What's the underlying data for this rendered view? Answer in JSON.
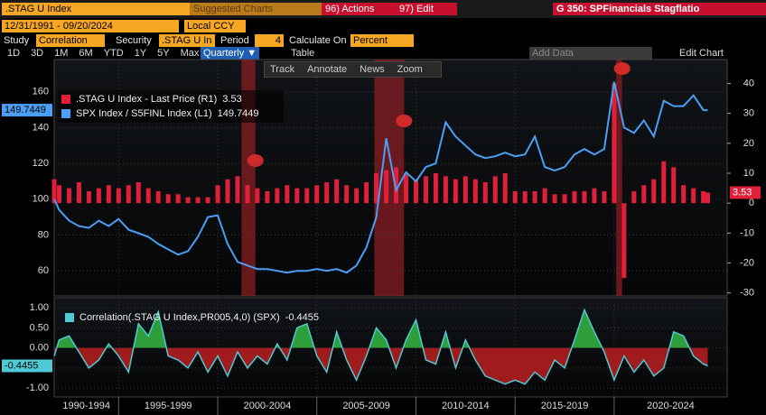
{
  "toolbar": {
    "ticker": ".STAG U Index",
    "suggested": "Suggested Charts",
    "actions": "96) Actions",
    "edit": "97) Edit",
    "chart_title": "G 350: SPFinancials Stagflatio",
    "date_range": "12/31/1991 - 09/20/2024",
    "currency": "Local CCY",
    "study_label": "Study",
    "study": "Correlation",
    "security_label": "Security",
    "security": ".STAG U In",
    "period_label": "Period",
    "period": "4",
    "calc_label": "Calculate On",
    "calc": "Percent",
    "ranges": [
      "1D",
      "3D",
      "1M",
      "6M",
      "YTD",
      "1Y",
      "5Y",
      "Max"
    ],
    "frequency": "Quarterly ▼",
    "table": "Table",
    "add_data": "Add Data",
    "edit_chart": "Edit Chart",
    "tools": [
      "Track",
      "Annotate",
      "News",
      "Zoom"
    ]
  },
  "chart_data": [
    {
      "type": "combo",
      "x": [
        1991.75,
        1992,
        1992.5,
        1993,
        1993.5,
        1994,
        1994.5,
        1995,
        1995.5,
        1996,
        1996.5,
        1997,
        1997.5,
        1998,
        1998.5,
        1999,
        1999.5,
        2000,
        2000.5,
        2001,
        2001.5,
        2002,
        2002.5,
        2003,
        2003.5,
        2004,
        2004.5,
        2005,
        2005.5,
        2006,
        2006.5,
        2007,
        2007.5,
        2008,
        2008.5,
        2009,
        2009.5,
        2010,
        2010.5,
        2011,
        2011.5,
        2012,
        2012.5,
        2013,
        2013.5,
        2014,
        2014.5,
        2015,
        2015.5,
        2016,
        2016.5,
        2017,
        2017.5,
        2018,
        2018.5,
        2019,
        2019.5,
        2020,
        2020.5,
        2021,
        2021.5,
        2022,
        2022.5,
        2023,
        2023.5,
        2024,
        2024.5,
        2024.72
      ],
      "series": [
        {
          "name": ".STAG U Index - Last Price (R1)",
          "color": "#e0203a",
          "axis": "y2",
          "values": [
            8,
            6,
            5,
            7,
            4,
            5,
            6,
            5,
            6,
            7,
            5,
            4,
            3,
            3,
            2,
            2,
            2,
            6,
            8,
            9,
            6,
            5,
            4,
            5,
            6,
            5,
            5,
            6,
            7,
            8,
            6,
            5,
            7,
            10,
            11,
            12,
            10,
            8,
            9,
            10,
            9,
            8,
            9,
            8,
            7,
            9,
            10,
            4,
            4,
            4,
            5,
            3,
            3,
            4,
            4,
            5,
            4,
            40,
            -25,
            4,
            6,
            8,
            14,
            12,
            6,
            5,
            4,
            3.53
          ]
        },
        {
          "name": "SPX Index / S5FINL Index (L1)",
          "color": "#4a9ff5",
          "values": [
            100,
            94,
            88,
            85,
            84,
            88,
            85,
            89,
            83,
            81,
            79,
            75,
            72,
            69,
            71,
            79,
            90,
            91,
            75,
            65,
            63,
            61,
            61,
            60,
            59,
            60,
            60,
            61,
            60,
            61,
            59,
            63,
            73,
            90,
            134,
            105,
            115,
            110,
            118,
            120,
            143,
            135,
            130,
            125,
            123,
            124,
            126,
            124,
            125,
            135,
            118,
            116,
            118,
            125,
            128,
            125,
            128,
            165.5,
            140,
            137,
            144,
            135,
            155,
            152,
            152,
            158,
            149.7449,
            149.7449
          ]
        }
      ],
      "ylim": [
        46,
        178
      ],
      "yticks": [
        60,
        80,
        100,
        120,
        140,
        160
      ],
      "y2lim": [
        -31,
        48
      ],
      "y2ticks": [
        -30,
        -20,
        -10,
        0,
        10,
        20,
        30,
        40
      ],
      "xlim": [
        1991.75,
        2025.7
      ],
      "xticks": [
        1995,
        2000,
        2005,
        2010,
        2015,
        2020
      ],
      "shaded_ranges": [
        [
          2001.2,
          2001.9
        ],
        [
          2007.9,
          2009.4
        ],
        [
          2020.1,
          2020.4
        ]
      ],
      "grid": true
    },
    {
      "type": "area",
      "legend": "Correlation(.STAG U Index,PR005,4,0) (SPX)",
      "x": [
        1991.75,
        1992,
        1992.5,
        1993,
        1993.5,
        1994,
        1994.5,
        1995,
        1995.5,
        1996,
        1996.5,
        1997,
        1997.5,
        1998,
        1998.5,
        1999,
        1999.5,
        2000,
        2000.5,
        2001,
        2001.5,
        2002,
        2002.5,
        2003,
        2003.5,
        2004,
        2004.5,
        2005,
        2005.5,
        2006,
        2006.5,
        2007,
        2007.5,
        2008,
        2008.5,
        2009,
        2009.5,
        2010,
        2010.5,
        2011,
        2011.5,
        2012,
        2012.5,
        2013,
        2013.5,
        2014,
        2014.5,
        2015,
        2015.5,
        2016,
        2016.5,
        2017,
        2017.5,
        2018,
        2018.5,
        2019,
        2019.5,
        2020,
        2020.5,
        2021,
        2021.5,
        2022,
        2022.5,
        2023,
        2023.5,
        2024,
        2024.5,
        2024.72
      ],
      "values": [
        -0.2,
        0.2,
        0.3,
        -0.1,
        -0.5,
        -0.3,
        0.1,
        -0.2,
        -0.6,
        0.6,
        0.3,
        0.9,
        -0.2,
        -0.3,
        -0.5,
        -0.1,
        -0.6,
        -0.2,
        -0.7,
        -0.1,
        -0.5,
        -0.2,
        -0.4,
        0.1,
        -0.3,
        0.5,
        0.6,
        -0.2,
        -0.6,
        0.4,
        -0.3,
        -0.8,
        -0.2,
        0.5,
        0.2,
        -0.5,
        0.2,
        0.7,
        -0.3,
        -0.4,
        0.4,
        -0.5,
        0.2,
        -0.3,
        -0.7,
        -0.8,
        -0.9,
        -0.8,
        -0.9,
        -0.6,
        -0.8,
        -0.3,
        -0.5,
        0.2,
        0.95,
        0.4,
        -0.1,
        -0.8,
        -0.2,
        -0.6,
        -0.3,
        -0.7,
        -0.5,
        0.4,
        0.3,
        -0.2,
        -0.4,
        -0.4455
      ],
      "color": "#4fc9d6",
      "positive_color": "#2e9e3a",
      "negative_color": "#a01c1c",
      "ylim": [
        -1.22,
        1.25
      ],
      "yticks": [
        {
          "value": 1,
          "label": "1.00"
        },
        {
          "value": 0.5,
          "label": "0.50"
        },
        {
          "value": 0,
          "label": "0.00"
        },
        {
          "value": -0.5,
          "label": "-0.50"
        },
        {
          "value": -1,
          "label": "-1.00"
        }
      ],
      "xlim": [
        1991.75,
        2025.7
      ],
      "xticks": [
        1995,
        2000,
        2005,
        2010,
        2015,
        2020
      ],
      "period_labels": [
        "1990-1994",
        "1995-1999",
        "2000-2004",
        "2005-2009",
        "2010-2014",
        "2015-2019",
        "2020-2024"
      ],
      "grid": true
    }
  ]
}
